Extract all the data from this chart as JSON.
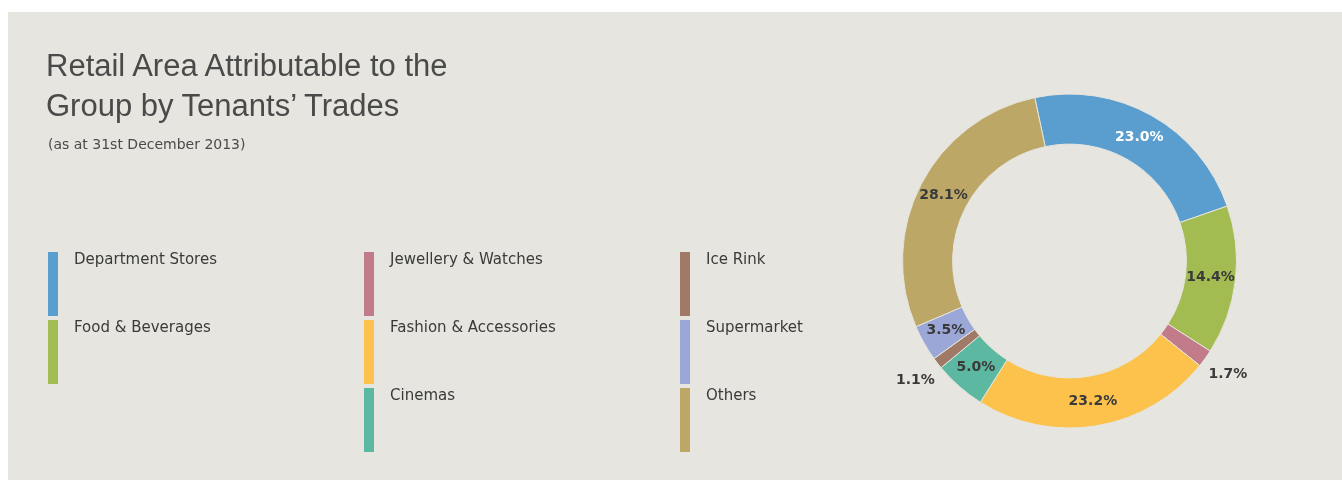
{
  "chart_data": {
    "type": "donut",
    "title": "Retail Area Attributable to the Group by Tenants’ Trades",
    "subtitle": "(as at 31st December 2013)",
    "categories": [
      "Department Stores",
      "Food & Beverages",
      "Jewellery & Watches",
      "Fashion & Accessories",
      "Cinemas",
      "Ice Rink",
      "Supermarket",
      "Others"
    ],
    "values": [
      23.0,
      14.4,
      1.7,
      23.2,
      5.0,
      1.1,
      3.5,
      28.1
    ],
    "colors": [
      "#5a9ecf",
      "#a3bc52",
      "#c27b88",
      "#fcc24c",
      "#5cb8a0",
      "#a07a66",
      "#9ba7d6",
      "#bca767"
    ],
    "value_labels": [
      "23.0%",
      "14.4%",
      "1.7%",
      "23.2%",
      "5.0%",
      "1.1%",
      "3.5%",
      "28.1%"
    ],
    "legend": "left"
  }
}
